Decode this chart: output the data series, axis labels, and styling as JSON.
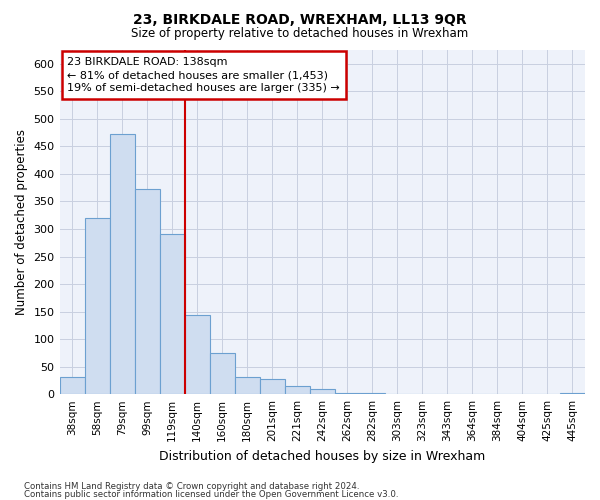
{
  "title": "23, BIRKDALE ROAD, WREXHAM, LL13 9QR",
  "subtitle": "Size of property relative to detached houses in Wrexham",
  "xlabel": "Distribution of detached houses by size in Wrexham",
  "ylabel": "Number of detached properties",
  "bar_labels": [
    "38sqm",
    "58sqm",
    "79sqm",
    "99sqm",
    "119sqm",
    "140sqm",
    "160sqm",
    "180sqm",
    "201sqm",
    "221sqm",
    "242sqm",
    "262sqm",
    "282sqm",
    "303sqm",
    "323sqm",
    "343sqm",
    "364sqm",
    "384sqm",
    "404sqm",
    "425sqm",
    "445sqm"
  ],
  "bar_values": [
    32,
    320,
    472,
    372,
    290,
    143,
    75,
    32,
    28,
    15,
    9,
    3,
    2,
    1,
    1,
    0,
    0,
    0,
    0,
    0,
    3
  ],
  "bar_color": "#cfddf0",
  "bar_edge_color": "#6ca0d0",
  "property_label": "23 BIRKDALE ROAD: 138sqm",
  "annotation_line1": "← 81% of detached houses are smaller (1,453)",
  "annotation_line2": "19% of semi-detached houses are larger (335) →",
  "vline_color": "#cc0000",
  "annotation_box_color": "#cc0000",
  "ylim": [
    0,
    625
  ],
  "yticks": [
    0,
    50,
    100,
    150,
    200,
    250,
    300,
    350,
    400,
    450,
    500,
    550,
    600
  ],
  "footer_line1": "Contains HM Land Registry data © Crown copyright and database right 2024.",
  "footer_line2": "Contains public sector information licensed under the Open Government Licence v3.0.",
  "bg_color": "#eef2fa",
  "grid_color": "#c8cfe0"
}
